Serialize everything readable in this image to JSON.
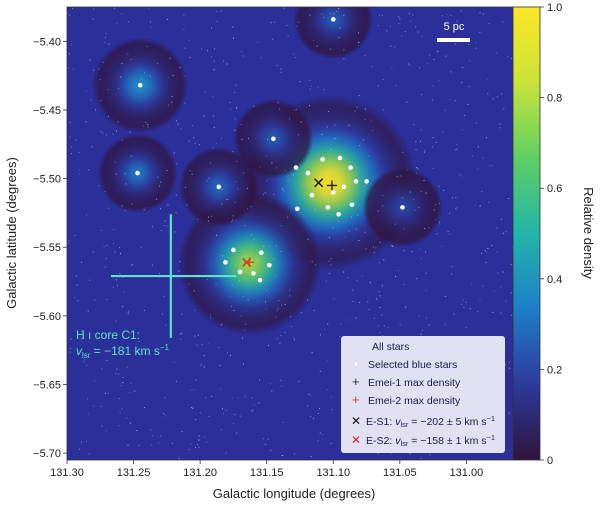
{
  "chart_data": {
    "type": "heatmap",
    "title": "",
    "xlabel": "Galactic longitude (degrees)",
    "ylabel": "Galactic latitude (degrees)",
    "xlim": [
      131.3,
      130.965
    ],
    "ylim": [
      -5.705,
      -5.375
    ],
    "x_reversed": true,
    "x_ticks": [
      131.3,
      131.25,
      131.2,
      131.15,
      131.1,
      131.05,
      131.0
    ],
    "x_tick_labels": [
      "131.30",
      "131.25",
      "131.20",
      "131.15",
      "131.10",
      "131.05",
      "131.00"
    ],
    "y_ticks": [
      -5.4,
      -5.45,
      -5.5,
      -5.55,
      -5.6,
      -5.65,
      -5.7
    ],
    "y_tick_labels": [
      "−5.40",
      "−5.45",
      "−5.50",
      "−5.55",
      "−5.60",
      "−5.65",
      "−5.70"
    ],
    "colorbar": {
      "label": "Relative density",
      "range": [
        0,
        1
      ],
      "ticks": [
        0,
        0.2,
        0.4,
        0.6,
        0.8,
        1.0
      ],
      "tick_labels": [
        "0",
        "0.2",
        "0.4",
        "0.6",
        "0.8",
        "1.0"
      ],
      "colormap": [
        "#30123b",
        "#2c3a9c",
        "#1e7fc8",
        "#22b5a9",
        "#5fcf62",
        "#c9e43a",
        "#fde725"
      ]
    },
    "scale_bar": {
      "label": "5 pc"
    },
    "density_peaks": [
      {
        "l": 131.103,
        "b": -5.503,
        "amplitude": 1.0,
        "sigma_deg": 0.022
      },
      {
        "l": 131.163,
        "b": -5.562,
        "amplitude": 0.78,
        "sigma_deg": 0.018
      },
      {
        "l": 131.245,
        "b": -5.432,
        "amplitude": 0.38,
        "sigma_deg": 0.012
      },
      {
        "l": 131.247,
        "b": -5.496,
        "amplitude": 0.32,
        "sigma_deg": 0.01
      },
      {
        "l": 131.186,
        "b": -5.506,
        "amplitude": 0.28,
        "sigma_deg": 0.01
      },
      {
        "l": 131.145,
        "b": -5.471,
        "amplitude": 0.25,
        "sigma_deg": 0.01
      },
      {
        "l": 131.1,
        "b": -5.384,
        "amplitude": 0.25,
        "sigma_deg": 0.01
      },
      {
        "l": 131.048,
        "b": -5.521,
        "amplitude": 0.2,
        "sigma_deg": 0.01
      }
    ],
    "selected_blue_stars": [
      [
        131.1,
        -5.384
      ],
      [
        131.245,
        -5.432
      ],
      [
        131.247,
        -5.496
      ],
      [
        131.186,
        -5.506
      ],
      [
        131.145,
        -5.471
      ],
      [
        131.048,
        -5.521
      ],
      [
        131.095,
        -5.485
      ],
      [
        131.108,
        -5.486
      ],
      [
        131.087,
        -5.492
      ],
      [
        131.119,
        -5.496
      ],
      [
        131.128,
        -5.492
      ],
      [
        131.083,
        -5.502
      ],
      [
        131.092,
        -5.506
      ],
      [
        131.116,
        -5.512
      ],
      [
        131.104,
        -5.521
      ],
      [
        131.086,
        -5.519
      ],
      [
        131.127,
        -5.522
      ],
      [
        131.096,
        -5.526
      ],
      [
        131.075,
        -5.502
      ],
      [
        131.1,
        -5.51
      ],
      [
        131.175,
        -5.552
      ],
      [
        131.154,
        -5.554
      ],
      [
        131.181,
        -5.561
      ],
      [
        131.16,
        -5.569
      ],
      [
        131.148,
        -5.563
      ],
      [
        131.17,
        -5.568
      ],
      [
        131.155,
        -5.574
      ]
    ],
    "emei1_max_density": {
      "l": 131.101,
      "b": -5.505
    },
    "emei2_max_density": {
      "l": 131.163,
      "b": -5.561
    },
    "E_S1": {
      "l": 131.111,
      "b": -5.503
    },
    "E_S2": {
      "l": 131.165,
      "b": -5.561
    },
    "hi_core": {
      "l": 131.222,
      "b": -5.571,
      "l_extent": [
        131.267,
        131.173
      ],
      "b_extent": [
        -5.526,
        -5.616
      ],
      "label_line1": "H ı core C1:",
      "label_v": "v",
      "label_sub": "lsr",
      "label_rest": " = −181 km s",
      "label_sup": "−1"
    },
    "legend": {
      "all_stars": "All stars",
      "selected_blue": "Selected blue stars",
      "emei1": "Emei-1 max density",
      "emei2": "Emei-2 max density",
      "es1_prefix": "E-S1: ",
      "es1_value": " = −202 ± 5 km s",
      "es2_prefix": "E-S2: ",
      "es2_value": " = −158 ± 1 km s",
      "v": "v",
      "sub": "lsr",
      "sup": "−1"
    },
    "colors": {
      "background": "#2a2f9a",
      "field_star": "#c8cdf0",
      "selected_star": "#ffffff",
      "emei1_marker": "#1a1a1a",
      "emei2_marker": "#e0442a",
      "es1_marker": "#111111",
      "es2_marker": "#d8232a",
      "hi_core": "#5ce3c8",
      "scale_bar": "#ffffff"
    }
  }
}
